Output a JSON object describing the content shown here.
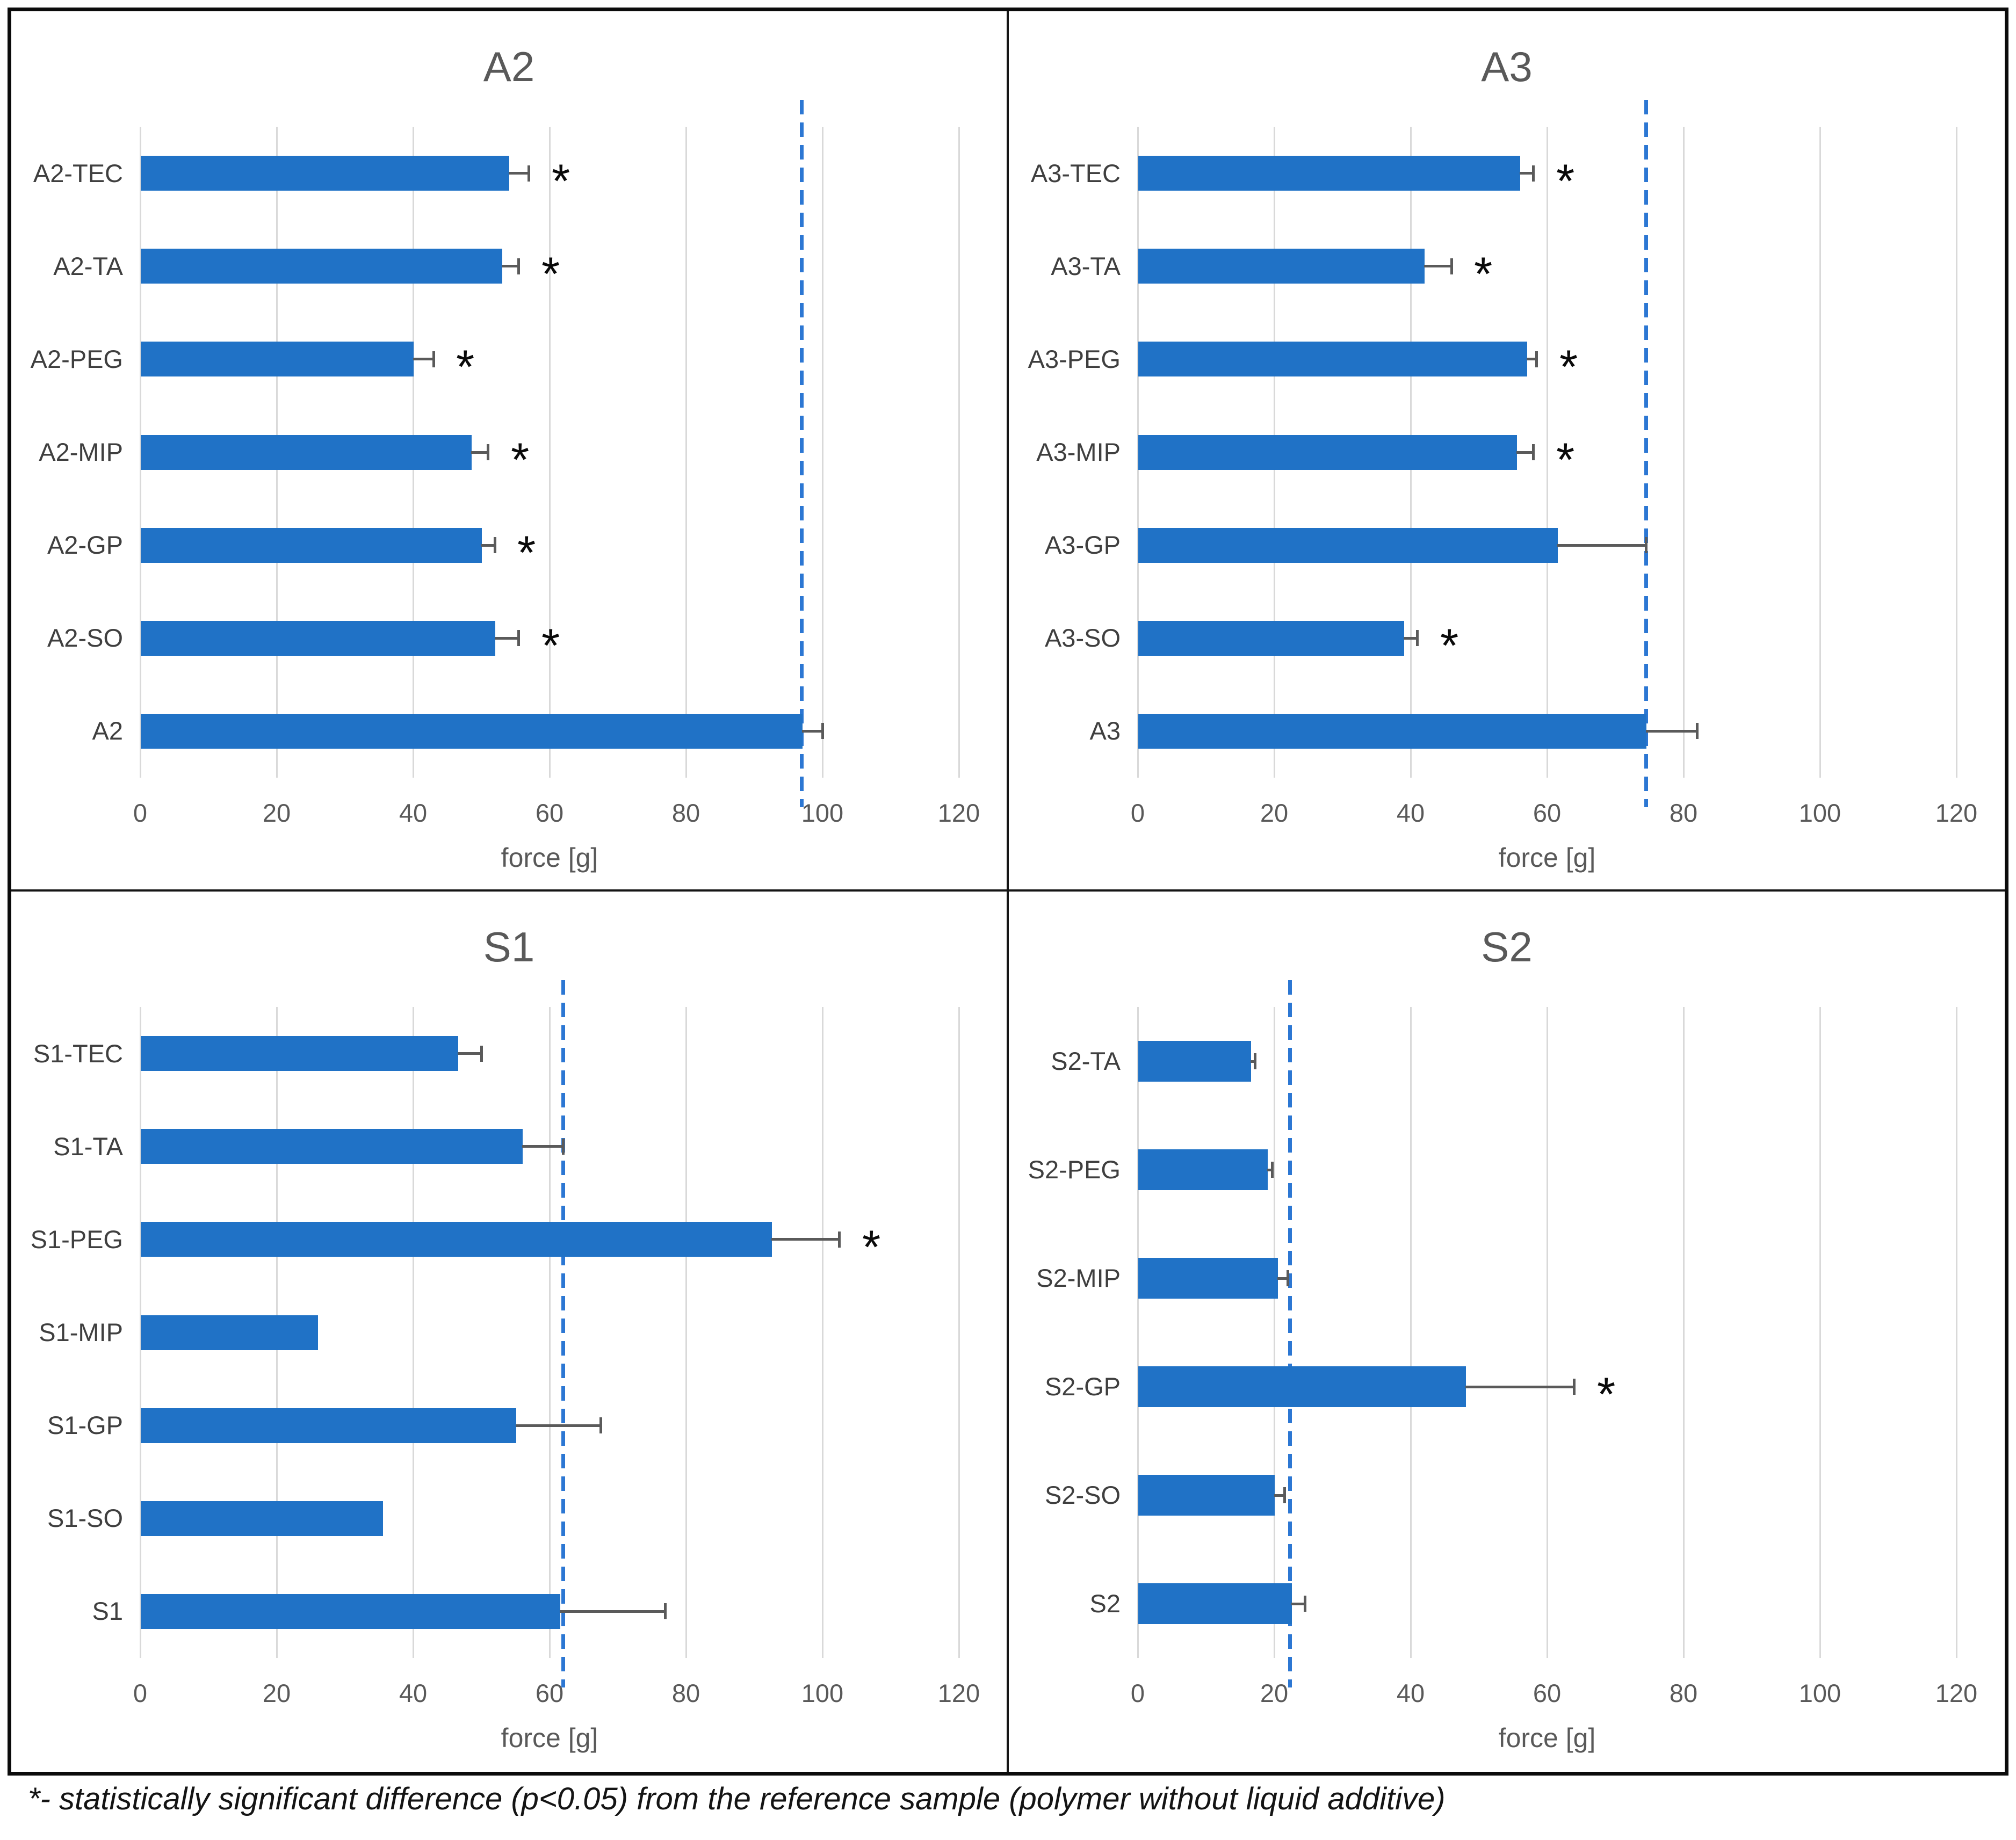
{
  "figure": {
    "footnote": "*- statistically significant difference (p<0.05) from the reference sample (polymer without liquid additive)"
  },
  "symbols": {
    "significance": "*"
  },
  "colors": {
    "bar": "#2072C6",
    "reference_line": "#2C77D3",
    "gridline": "#D9D9D9",
    "error_bar": "#5A5A5A",
    "text_primary": "#595959",
    "text_category": "#3F3F3F",
    "border": "#0B0B0B",
    "background": "#FFFFFF"
  },
  "chart_data": [
    {
      "type": "bar",
      "orientation": "horizontal",
      "title": "A2",
      "xlabel": "force [g]",
      "xlim": [
        0,
        120
      ],
      "xticks": [
        0,
        20,
        40,
        60,
        80,
        100,
        120
      ],
      "grid": true,
      "reference_line": 97,
      "categories": [
        "A2-TEC",
        "A2-TA",
        "A2-PEG",
        "A2-MIP",
        "A2-GP",
        "A2-SO",
        "A2"
      ],
      "values": [
        54,
        53,
        40,
        48.5,
        50,
        52,
        97
      ],
      "errors_plus": [
        3,
        2.5,
        3,
        2.5,
        2,
        3.5,
        3
      ],
      "significant": [
        true,
        true,
        true,
        true,
        true,
        true,
        false
      ]
    },
    {
      "type": "bar",
      "orientation": "horizontal",
      "title": "A3",
      "xlabel": "force [g]",
      "xlim": [
        0,
        120
      ],
      "xticks": [
        0,
        20,
        40,
        60,
        80,
        100,
        120
      ],
      "grid": true,
      "reference_line": 74.5,
      "categories": [
        "A3-TEC",
        "A3-TA",
        "A3-PEG",
        "A3-MIP",
        "A3-GP",
        "A3-SO",
        "A3"
      ],
      "values": [
        56,
        42,
        57,
        55.5,
        61.5,
        39,
        74.5
      ],
      "errors_plus": [
        2,
        4,
        1.5,
        2.5,
        13,
        2,
        7.5
      ],
      "significant": [
        true,
        true,
        true,
        true,
        false,
        true,
        false
      ]
    },
    {
      "type": "bar",
      "orientation": "horizontal",
      "title": "S1",
      "xlabel": "force [g]",
      "xlim": [
        0,
        120
      ],
      "xticks": [
        0,
        20,
        40,
        60,
        80,
        100,
        120
      ],
      "grid": true,
      "reference_line": 62,
      "categories": [
        "S1-TEC",
        "S1-TA",
        "S1-PEG",
        "S1-MIP",
        "S1-GP",
        "S1-SO",
        "S1"
      ],
      "values": [
        46.5,
        56,
        92.5,
        26,
        55,
        35.5,
        61.5
      ],
      "errors_plus": [
        3.5,
        6,
        10,
        0,
        12.5,
        0,
        15.5
      ],
      "significant": [
        false,
        false,
        true,
        false,
        false,
        false,
        false
      ]
    },
    {
      "type": "bar",
      "orientation": "horizontal",
      "title": "S2",
      "xlabel": "force [g]",
      "xlim": [
        0,
        120
      ],
      "xticks": [
        0,
        20,
        40,
        60,
        80,
        100,
        120
      ],
      "grid": true,
      "reference_line": 22.3,
      "categories": [
        "S2-TA",
        "S2-PEG",
        "S2-MIP",
        "S2-GP",
        "S2-SO",
        "S2"
      ],
      "values": [
        16.5,
        19,
        20.5,
        48,
        20,
        22.5
      ],
      "errors_plus": [
        0.7,
        0.7,
        1.5,
        16,
        1.5,
        2
      ],
      "significant": [
        false,
        false,
        false,
        true,
        false,
        false
      ]
    }
  ]
}
